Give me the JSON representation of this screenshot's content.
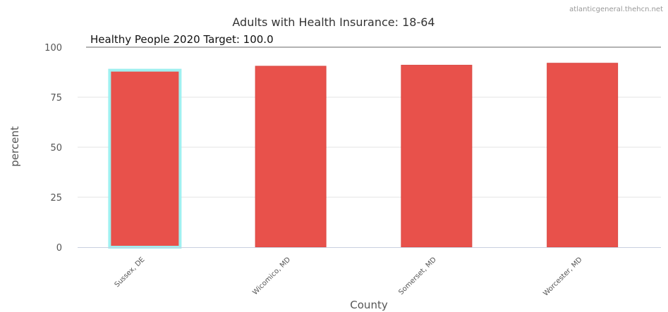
{
  "credit": "atlanticgeneral.thehcn.net",
  "chart_data": {
    "type": "bar",
    "title": "Adults with Health Insurance: 18-64",
    "xlabel": "County",
    "ylabel": "percent",
    "categories": [
      "Sussex, DE",
      "Wicomico, MD",
      "Somerset, MD",
      "Worcester, MD"
    ],
    "values": [
      88.5,
      90.5,
      91.0,
      92.0
    ],
    "ylim": [
      0,
      100
    ],
    "yticks": [
      0,
      25,
      50,
      75,
      100
    ],
    "grid": true,
    "target": {
      "label": "Healthy People 2020 Target: 100.0",
      "value": 100
    },
    "highlighted_category": "Sussex, DE",
    "colors": {
      "bar": "#e8514b",
      "highlight_border": "#9ff0f0",
      "target_line": "#b3b3b3",
      "grid": "#e3e3e3"
    }
  }
}
